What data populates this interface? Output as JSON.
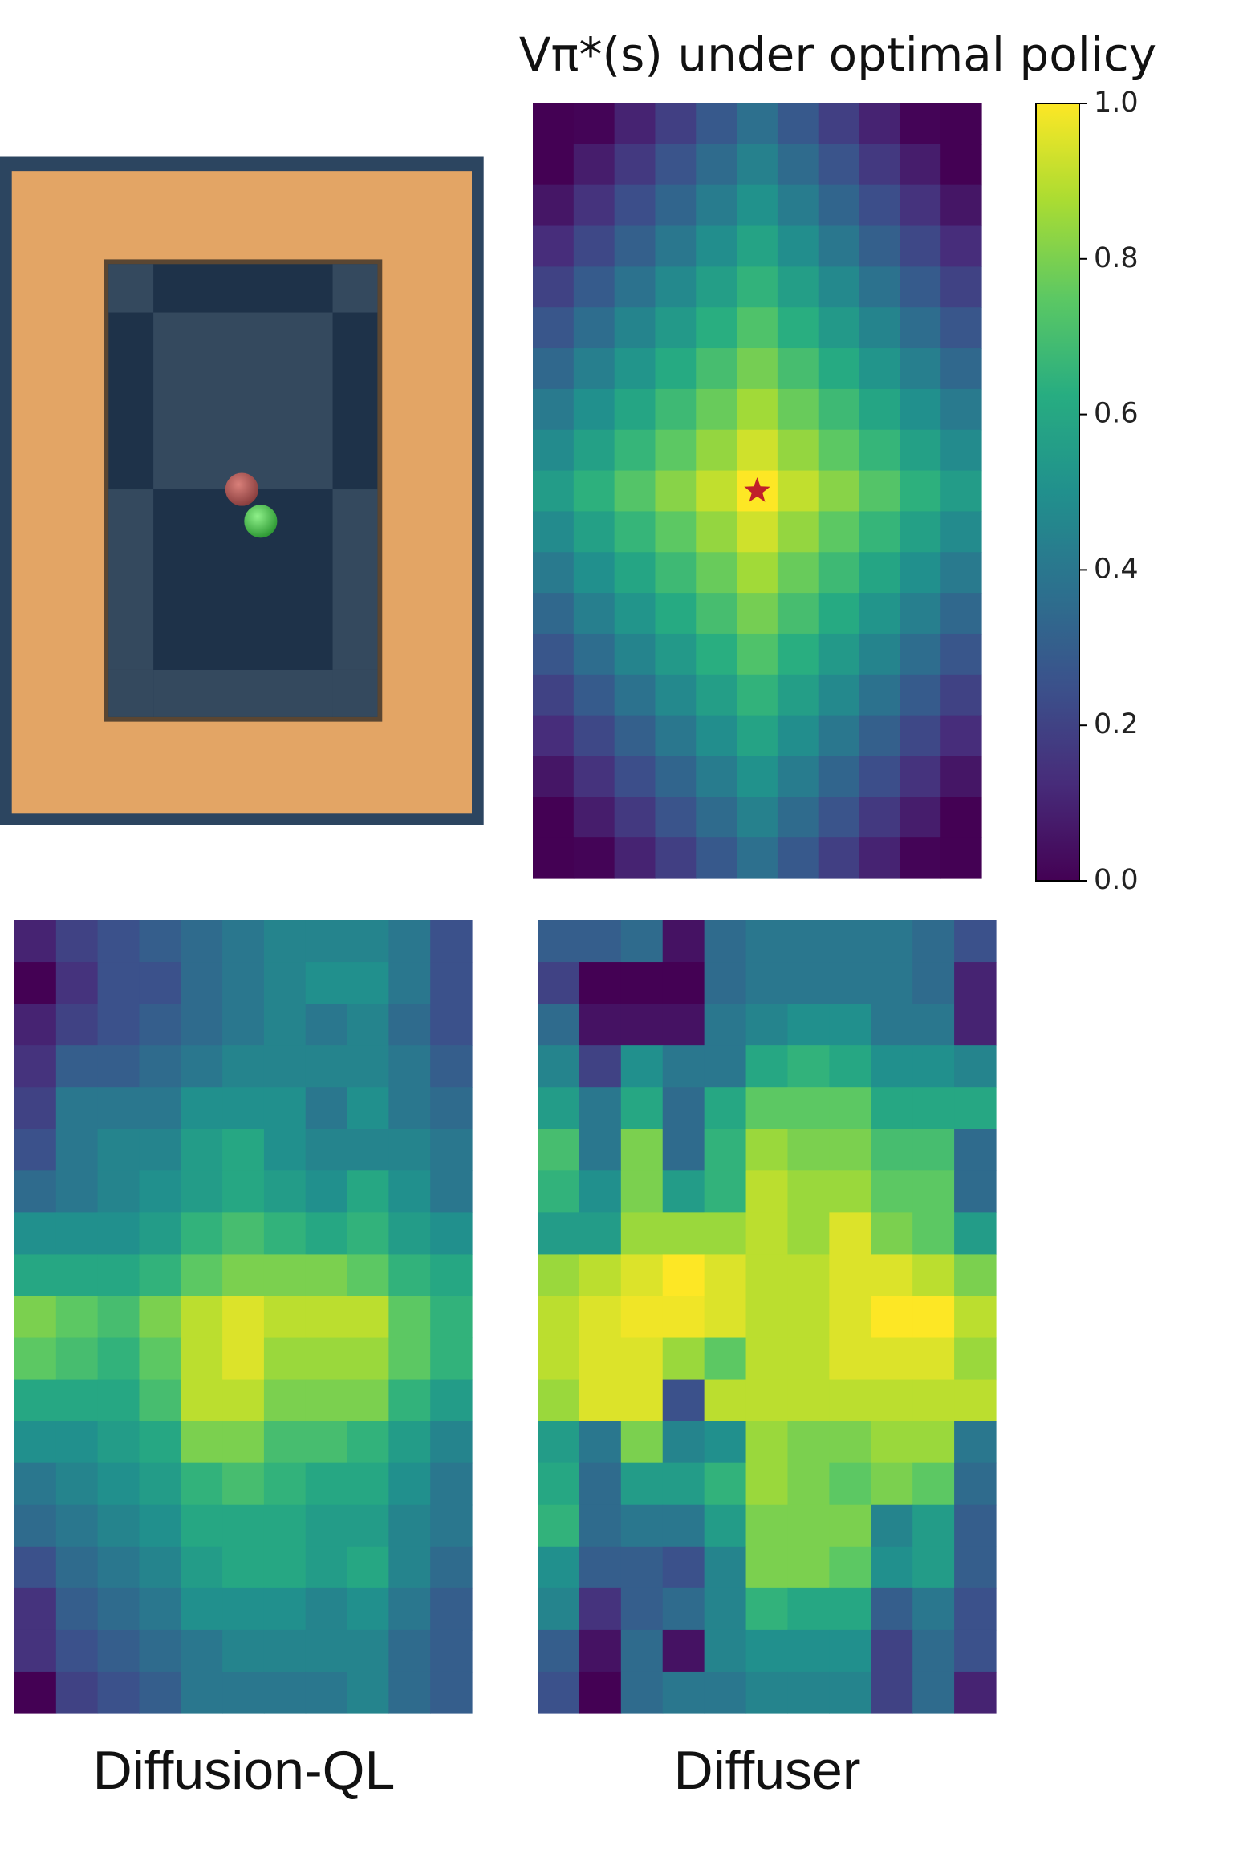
{
  "chart_data": [
    {
      "type": "heatmap",
      "title": "Vπ*(s) under optimal policy",
      "colormap": "viridis",
      "marker": {
        "row": 9,
        "col": 5,
        "color": "#c0202a"
      },
      "colorbar": {
        "ylim": [
          0,
          1
        ],
        "yticks": [
          {
            "value": 0,
            "label": "0.0"
          },
          0.2,
          0.4,
          0.6,
          0.8,
          {
            "value": 1,
            "label": "1.0"
          }
        ]
      },
      "values": [
        [
          0,
          0.01,
          0.1,
          0.19,
          0.28,
          0.37,
          0.28,
          0.19,
          0.1,
          0.01,
          0
        ],
        [
          0,
          0.08,
          0.17,
          0.26,
          0.35,
          0.44,
          0.35,
          0.26,
          0.17,
          0.08,
          0
        ],
        [
          0.06,
          0.15,
          0.24,
          0.33,
          0.42,
          0.51,
          0.42,
          0.33,
          0.24,
          0.15,
          0.06
        ],
        [
          0.13,
          0.22,
          0.31,
          0.4,
          0.49,
          0.58,
          0.49,
          0.4,
          0.31,
          0.22,
          0.13
        ],
        [
          0.2,
          0.29,
          0.38,
          0.47,
          0.56,
          0.65,
          0.56,
          0.47,
          0.38,
          0.29,
          0.2
        ],
        [
          0.27,
          0.36,
          0.45,
          0.54,
          0.63,
          0.72,
          0.63,
          0.54,
          0.45,
          0.36,
          0.27
        ],
        [
          0.34,
          0.43,
          0.52,
          0.61,
          0.7,
          0.79,
          0.7,
          0.61,
          0.52,
          0.43,
          0.34
        ],
        [
          0.41,
          0.5,
          0.59,
          0.68,
          0.77,
          0.86,
          0.77,
          0.68,
          0.59,
          0.5,
          0.41
        ],
        [
          0.48,
          0.57,
          0.66,
          0.75,
          0.84,
          0.93,
          0.84,
          0.75,
          0.66,
          0.57,
          0.48
        ],
        [
          0.55,
          0.64,
          0.73,
          0.82,
          0.91,
          1.0,
          0.91,
          0.82,
          0.73,
          0.64,
          0.55
        ],
        [
          0.48,
          0.57,
          0.66,
          0.75,
          0.84,
          0.93,
          0.84,
          0.75,
          0.66,
          0.57,
          0.48
        ],
        [
          0.41,
          0.5,
          0.59,
          0.68,
          0.77,
          0.86,
          0.77,
          0.68,
          0.59,
          0.5,
          0.41
        ],
        [
          0.34,
          0.43,
          0.52,
          0.61,
          0.7,
          0.79,
          0.7,
          0.61,
          0.52,
          0.43,
          0.34
        ],
        [
          0.27,
          0.36,
          0.45,
          0.54,
          0.63,
          0.72,
          0.63,
          0.54,
          0.45,
          0.36,
          0.27
        ],
        [
          0.2,
          0.29,
          0.38,
          0.47,
          0.56,
          0.65,
          0.56,
          0.47,
          0.38,
          0.29,
          0.2
        ],
        [
          0.13,
          0.22,
          0.31,
          0.4,
          0.49,
          0.58,
          0.49,
          0.4,
          0.31,
          0.22,
          0.13
        ],
        [
          0.06,
          0.15,
          0.24,
          0.33,
          0.42,
          0.51,
          0.42,
          0.33,
          0.24,
          0.15,
          0.06
        ],
        [
          0,
          0.08,
          0.17,
          0.26,
          0.35,
          0.44,
          0.35,
          0.26,
          0.17,
          0.08,
          0
        ],
        [
          0,
          0.01,
          0.1,
          0.19,
          0.28,
          0.37,
          0.28,
          0.19,
          0.1,
          0.01,
          0
        ]
      ]
    },
    {
      "type": "heatmap",
      "xlabel": "Diffusion-QL",
      "colormap": "viridis",
      "values": [
        [
          0.1,
          0.2,
          0.25,
          0.3,
          0.35,
          0.4,
          0.45,
          0.45,
          0.45,
          0.4,
          0.25
        ],
        [
          0.0,
          0.15,
          0.25,
          0.25,
          0.35,
          0.4,
          0.45,
          0.5,
          0.5,
          0.4,
          0.25
        ],
        [
          0.1,
          0.2,
          0.25,
          0.3,
          0.35,
          0.4,
          0.45,
          0.4,
          0.45,
          0.35,
          0.25
        ],
        [
          0.15,
          0.3,
          0.3,
          0.35,
          0.4,
          0.45,
          0.45,
          0.45,
          0.45,
          0.4,
          0.3
        ],
        [
          0.2,
          0.4,
          0.4,
          0.4,
          0.5,
          0.5,
          0.5,
          0.4,
          0.5,
          0.4,
          0.35
        ],
        [
          0.25,
          0.4,
          0.45,
          0.45,
          0.55,
          0.6,
          0.5,
          0.45,
          0.45,
          0.45,
          0.4
        ],
        [
          0.35,
          0.4,
          0.45,
          0.5,
          0.55,
          0.6,
          0.55,
          0.5,
          0.6,
          0.5,
          0.4
        ],
        [
          0.5,
          0.5,
          0.5,
          0.55,
          0.65,
          0.7,
          0.65,
          0.6,
          0.65,
          0.55,
          0.5
        ],
        [
          0.6,
          0.6,
          0.6,
          0.65,
          0.75,
          0.8,
          0.8,
          0.8,
          0.75,
          0.65,
          0.6
        ],
        [
          0.8,
          0.75,
          0.7,
          0.8,
          0.9,
          0.95,
          0.9,
          0.9,
          0.9,
          0.75,
          0.65
        ],
        [
          0.75,
          0.7,
          0.65,
          0.75,
          0.9,
          0.95,
          0.85,
          0.85,
          0.85,
          0.75,
          0.65
        ],
        [
          0.6,
          0.6,
          0.6,
          0.7,
          0.9,
          0.9,
          0.8,
          0.8,
          0.8,
          0.65,
          0.55
        ],
        [
          0.5,
          0.5,
          0.55,
          0.6,
          0.8,
          0.8,
          0.7,
          0.7,
          0.65,
          0.55,
          0.45
        ],
        [
          0.4,
          0.45,
          0.5,
          0.55,
          0.65,
          0.7,
          0.65,
          0.6,
          0.6,
          0.5,
          0.4
        ],
        [
          0.35,
          0.4,
          0.45,
          0.5,
          0.6,
          0.6,
          0.6,
          0.55,
          0.55,
          0.45,
          0.4
        ],
        [
          0.25,
          0.35,
          0.4,
          0.45,
          0.55,
          0.6,
          0.6,
          0.55,
          0.6,
          0.45,
          0.35
        ],
        [
          0.15,
          0.3,
          0.35,
          0.4,
          0.5,
          0.5,
          0.5,
          0.45,
          0.5,
          0.4,
          0.3
        ],
        [
          0.15,
          0.25,
          0.3,
          0.35,
          0.4,
          0.45,
          0.45,
          0.45,
          0.45,
          0.35,
          0.3
        ],
        [
          0.0,
          0.2,
          0.25,
          0.3,
          0.4,
          0.4,
          0.4,
          0.4,
          0.45,
          0.35,
          0.3
        ]
      ]
    },
    {
      "type": "heatmap",
      "xlabel": "Diffuser",
      "colormap": "viridis",
      "values": [
        [
          0.3,
          0.3,
          0.35,
          0.05,
          0.35,
          0.4,
          0.4,
          0.4,
          0.4,
          0.35,
          0.25
        ],
        [
          0.2,
          0.0,
          0.0,
          0.0,
          0.35,
          0.4,
          0.4,
          0.4,
          0.4,
          0.35,
          0.1
        ],
        [
          0.35,
          0.05,
          0.05,
          0.05,
          0.4,
          0.45,
          0.5,
          0.5,
          0.4,
          0.4,
          0.1
        ],
        [
          0.45,
          0.2,
          0.5,
          0.4,
          0.4,
          0.6,
          0.65,
          0.6,
          0.5,
          0.5,
          0.45
        ],
        [
          0.55,
          0.4,
          0.6,
          0.35,
          0.6,
          0.75,
          0.75,
          0.75,
          0.6,
          0.6,
          0.6
        ],
        [
          0.7,
          0.4,
          0.8,
          0.35,
          0.65,
          0.85,
          0.8,
          0.8,
          0.7,
          0.7,
          0.35
        ],
        [
          0.65,
          0.5,
          0.8,
          0.55,
          0.65,
          0.9,
          0.85,
          0.85,
          0.75,
          0.75,
          0.35
        ],
        [
          0.55,
          0.55,
          0.85,
          0.85,
          0.85,
          0.9,
          0.85,
          0.95,
          0.8,
          0.75,
          0.55
        ],
        [
          0.85,
          0.9,
          0.95,
          1.0,
          0.95,
          0.9,
          0.9,
          0.95,
          0.95,
          0.9,
          0.8
        ],
        [
          0.9,
          0.95,
          0.98,
          0.98,
          0.95,
          0.9,
          0.9,
          0.95,
          1.0,
          1.0,
          0.9
        ],
        [
          0.9,
          0.95,
          0.95,
          0.85,
          0.75,
          0.9,
          0.9,
          0.95,
          0.95,
          0.95,
          0.85
        ],
        [
          0.85,
          0.95,
          0.95,
          0.25,
          0.9,
          0.9,
          0.9,
          0.9,
          0.9,
          0.9,
          0.9
        ],
        [
          0.55,
          0.4,
          0.8,
          0.45,
          0.5,
          0.85,
          0.8,
          0.8,
          0.85,
          0.85,
          0.4
        ],
        [
          0.6,
          0.35,
          0.55,
          0.55,
          0.65,
          0.85,
          0.8,
          0.75,
          0.8,
          0.75,
          0.35
        ],
        [
          0.65,
          0.35,
          0.4,
          0.4,
          0.55,
          0.8,
          0.8,
          0.8,
          0.45,
          0.55,
          0.3
        ],
        [
          0.5,
          0.3,
          0.3,
          0.25,
          0.45,
          0.8,
          0.8,
          0.75,
          0.5,
          0.55,
          0.3
        ],
        [
          0.45,
          0.15,
          0.3,
          0.35,
          0.45,
          0.65,
          0.6,
          0.6,
          0.3,
          0.4,
          0.25
        ],
        [
          0.3,
          0.05,
          0.35,
          0.05,
          0.45,
          0.5,
          0.5,
          0.5,
          0.2,
          0.35,
          0.25
        ],
        [
          0.25,
          0.0,
          0.35,
          0.4,
          0.4,
          0.45,
          0.45,
          0.45,
          0.2,
          0.35,
          0.1
        ]
      ]
    }
  ]
}
